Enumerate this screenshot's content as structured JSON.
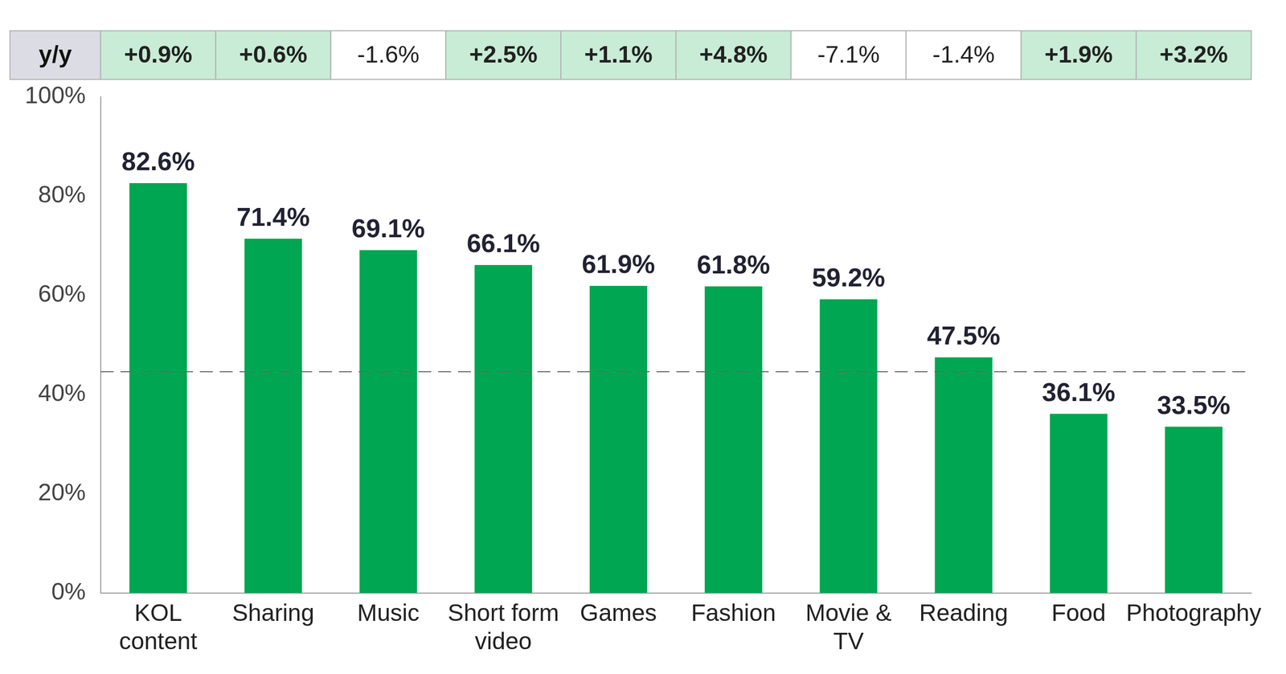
{
  "chart_data": {
    "type": "bar",
    "categories": [
      "KOL\ncontent",
      "Sharing",
      "Music",
      "Short form\nvideo",
      "Games",
      "Fashion",
      "Movie &\nTV",
      "Reading",
      "Food",
      "Photography"
    ],
    "values": [
      82.6,
      71.4,
      69.1,
      66.1,
      61.9,
      61.8,
      59.2,
      47.5,
      36.1,
      33.5
    ],
    "value_labels": [
      "82.6%",
      "71.4%",
      "69.1%",
      "66.1%",
      "61.9%",
      "61.8%",
      "59.2%",
      "47.5%",
      "36.1%",
      "33.5%"
    ],
    "color": "#00a651",
    "ylim": [
      0,
      100
    ],
    "yticks": [
      {
        "value": 0,
        "label": "0%"
      },
      {
        "value": 20,
        "label": "20%"
      },
      {
        "value": 40,
        "label": "40%"
      },
      {
        "value": 60,
        "label": "60%"
      },
      {
        "value": 80,
        "label": "80%"
      },
      {
        "value": 100,
        "label": "100%"
      }
    ],
    "grid": false,
    "data_labels": true,
    "reference_line": 44.6,
    "yoy": {
      "label": "y/y",
      "values": [
        0.9,
        0.6,
        -1.6,
        2.5,
        1.1,
        4.8,
        -7.1,
        -1.4,
        1.9,
        3.2
      ],
      "value_labels": [
        "+0.9%",
        "+0.6%",
        "-1.6%",
        "+2.5%",
        "+1.1%",
        "+4.8%",
        "-7.1%",
        "-1.4%",
        "+1.9%",
        "+3.2%"
      ]
    }
  }
}
